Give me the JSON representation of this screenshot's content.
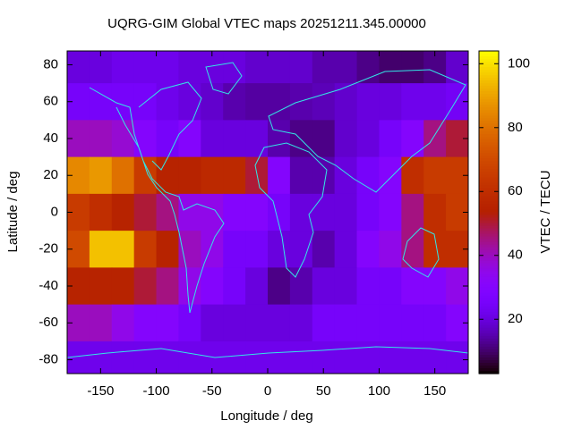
{
  "chart_data": {
    "type": "heatmap",
    "title": "UQRG-GIM Global VTEC maps 20251211.345.00000",
    "x_label": "Longitude / deg",
    "y_label": "Latitude / deg",
    "colorbar_label": "VTEC / TECU",
    "xlim": [
      -180,
      180
    ],
    "ylim": [
      -87.5,
      87.5
    ],
    "xticks": [
      -150,
      -100,
      -50,
      0,
      50,
      100,
      150
    ],
    "yticks": [
      -80,
      -60,
      -40,
      -20,
      0,
      20,
      40,
      60,
      80
    ],
    "zlim": [
      3,
      104
    ],
    "zticks": [
      20,
      40,
      60,
      80,
      100
    ],
    "x": [
      -170,
      -150,
      -130,
      -110,
      -90,
      -70,
      -50,
      -30,
      -10,
      10,
      30,
      50,
      70,
      90,
      110,
      130,
      150,
      170
    ],
    "y": [
      80,
      60,
      40,
      20,
      0,
      -20,
      -40,
      -60,
      -80
    ],
    "z": [
      [
        20,
        20,
        22,
        22,
        22,
        20,
        20,
        20,
        18,
        18,
        18,
        15,
        15,
        12,
        10,
        10,
        12,
        18
      ],
      [
        25,
        25,
        25,
        25,
        22,
        20,
        18,
        15,
        14,
        14,
        15,
        16,
        18,
        20,
        20,
        22,
        22,
        24
      ],
      [
        40,
        40,
        38,
        30,
        25,
        30,
        20,
        20,
        20,
        15,
        12,
        12,
        18,
        20,
        25,
        30,
        45,
        50
      ],
      [
        85,
        88,
        80,
        65,
        55,
        55,
        58,
        58,
        50,
        30,
        15,
        15,
        20,
        25,
        30,
        60,
        65,
        65
      ],
      [
        65,
        60,
        55,
        50,
        45,
        35,
        35,
        30,
        30,
        25,
        20,
        20,
        20,
        25,
        30,
        45,
        60,
        65
      ],
      [
        70,
        95,
        95,
        65,
        55,
        40,
        35,
        25,
        25,
        20,
        20,
        15,
        20,
        30,
        35,
        45,
        60,
        60
      ],
      [
        55,
        55,
        55,
        50,
        45,
        35,
        30,
        25,
        20,
        12,
        15,
        20,
        20,
        25,
        25,
        30,
        30,
        35
      ],
      [
        40,
        40,
        35,
        30,
        30,
        25,
        20,
        20,
        20,
        20,
        20,
        25,
        25,
        25,
        25,
        25,
        25,
        30
      ],
      [
        22,
        22,
        22,
        22,
        22,
        22,
        22,
        22,
        22,
        22,
        22,
        22,
        22,
        22,
        22,
        22,
        22,
        22
      ]
    ]
  }
}
